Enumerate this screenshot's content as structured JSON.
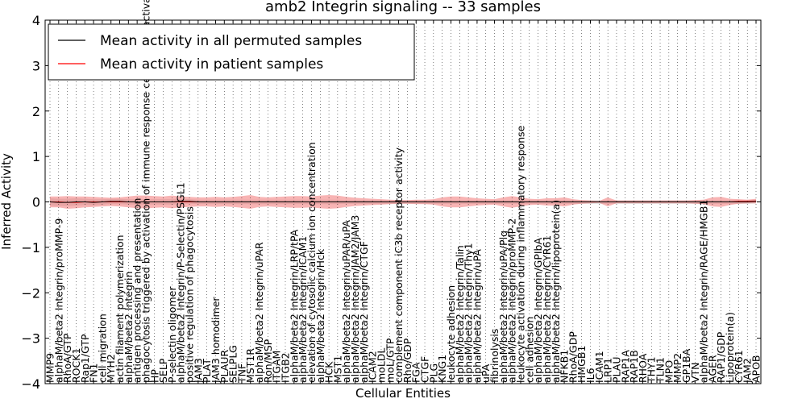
{
  "chart_data": {
    "type": "line",
    "title": "amb2 Integrin signaling -- 33 samples",
    "xlabel": "Cellular Entities",
    "ylabel": "Inferred Activity",
    "ylim": [
      -4,
      4
    ],
    "yticks": [
      -4,
      -3,
      -2,
      -1,
      0,
      1,
      2,
      3,
      4
    ],
    "ytick_labels": [
      "−4",
      "−3",
      "−2",
      "−1",
      "0",
      "1",
      "2",
      "3",
      "4"
    ],
    "legend": {
      "placement": "top-left",
      "entries": [
        {
          "label": "Mean activity in all permuted samples",
          "color": "#000000"
        },
        {
          "label": "Mean activity in patient samples",
          "color": "#ff0000"
        }
      ]
    },
    "categories": [
      "MMP9",
      "alphaM/beta2 Integrin/proMMP-9",
      "RhoA/GTP",
      "ROCK1",
      "Rap1/GTP",
      "FN1",
      "cell migration",
      "MYH2",
      "actin filament polymerization",
      "alphaM/beta2 Integrin",
      "antigen processing and presentation",
      "phagocytosis triggered by activation of immune response cell surface activating receptor",
      "HP",
      "SELP",
      "P-selectin oligomer",
      "alphaM/beta2 Integrin/P-Selectin/PSGL1",
      "positive regulation of phagocytosis",
      "JAM3",
      "PLAT",
      "JAM3 homodimer",
      "PLAUR",
      "SELPLG",
      "TNF",
      "MST1R",
      "alphaM/beta2 Integrin/uPAR",
      "Ron/MSP",
      "ITGAM",
      "ITGB2",
      "alphaM/beta2 Integrin/LRP/tPA",
      "alphaM/beta2 Integrin/ICAM1",
      "elevation of cytosolic calcium ion concentration",
      "alphaM/beta2 Integrin/Hck",
      "HCK",
      "MST1",
      "alphaM/beta2 Integrin/uPAR/uPA",
      "alphaM/beta2 Integrin/JAM2/JAM3",
      "alphaM/beta2 Integrin/CTGF",
      "ICAM2",
      "moLDL",
      "moL/GTP",
      "complement component iC3b receptor activity",
      "Rho/GDP",
      "FGA",
      "CTGF",
      "PLG",
      "KNG1",
      "leukocyte adhesion",
      "alphaM/beta2 Integrin/Talin",
      "alphaM/beta2 Integrin/Thy1",
      "alphaM/beta2 Integrin/uPA",
      "uPA",
      "fibrinolysis",
      "alphaM/beta2 Integrin/uPA/Plg",
      "alphaM/beta2 Integrin/proMMP-2",
      "leukocyte activation during inflammatory response",
      "cell adhesion",
      "alphaM/beta2 Integrin/GPIbA",
      "alphaM/beta2 Integrin/CYR61",
      "alphaM/beta2 Integrin/lipoprotein(a)",
      "NFKB1",
      "RhoA/GDP",
      "HMGB1",
      "IL6",
      "ICAM1",
      "LRP1",
      "PLAU",
      "RAP1A",
      "RAP1B",
      "RHOA",
      "THY1",
      "TLN1",
      "MPO",
      "MMP2",
      "GP1BA",
      "VTN",
      "alphaM/beta2 Integrin/RAGE/HMGB1",
      "AGER",
      "RAP1/GDP",
      "Lipoprotein(a)",
      "CYR61",
      "JAM2",
      "APOB"
    ],
    "series": [
      {
        "name": "Mean activity in all permuted samples",
        "color": "#000000",
        "values": [
          0,
          -0.01,
          -0.01,
          0,
          0,
          -0.01,
          0,
          0.01,
          0.01,
          0,
          0,
          0,
          0,
          0,
          0,
          0.01,
          0.01,
          0,
          0,
          0,
          0,
          0,
          0,
          0,
          0,
          0,
          0,
          0,
          0,
          0,
          0,
          0,
          0,
          0,
          0,
          0,
          0,
          0,
          0,
          0,
          0,
          0,
          0,
          0,
          0,
          0,
          0,
          0,
          0,
          0,
          0,
          0,
          0,
          0,
          0,
          0,
          0,
          0,
          0,
          0,
          0,
          0,
          0,
          0,
          0,
          0,
          0,
          0,
          0,
          0,
          0,
          0,
          0,
          0,
          0,
          0,
          0,
          0,
          0,
          0,
          0,
          0.01
        ],
        "band": [
          0.08,
          0.08,
          0.08,
          0.08,
          0.07,
          0.07,
          0.06,
          0.06,
          0.06,
          0.06,
          0.06,
          0.06,
          0.06,
          0.06,
          0.06,
          0.06,
          0.05,
          0.05,
          0.05,
          0.05,
          0.05,
          0.05,
          0.05,
          0.05,
          0.05,
          0.05,
          0.05,
          0.05,
          0.05,
          0.05,
          0.05,
          0.05,
          0.05,
          0.05,
          0.04,
          0.04,
          0.04,
          0.04,
          0.04,
          0.04,
          0.04,
          0.04,
          0.04,
          0.04,
          0.04,
          0.04,
          0.04,
          0.04,
          0.04,
          0.04,
          0.04,
          0.04,
          0.04,
          0.04,
          0.04,
          0.04,
          0.04,
          0.04,
          0.04,
          0.04,
          0.04,
          0.04,
          0.04,
          0.04,
          0.04,
          0.04,
          0.04,
          0.04,
          0.04,
          0.04,
          0.04,
          0.04,
          0.04,
          0.04,
          0.04,
          0.04,
          0.04,
          0.04,
          0.04,
          0.04,
          0.04,
          0.04
        ]
      },
      {
        "name": "Mean activity in patient samples",
        "color": "#ff0000",
        "values": [
          0,
          0,
          -0.01,
          -0.01,
          0,
          0,
          0,
          0,
          0,
          0,
          0,
          0,
          0,
          0,
          0,
          0,
          0,
          0,
          0,
          0,
          0,
          0,
          0,
          0,
          0,
          0,
          0,
          0,
          0,
          0,
          0,
          0,
          0,
          0,
          0,
          0,
          0,
          0,
          0,
          0,
          0,
          0,
          0,
          0,
          0,
          0,
          0,
          0,
          0,
          0,
          0,
          0,
          0,
          0,
          0,
          0,
          0,
          0,
          0,
          0,
          0,
          0,
          0,
          0,
          0,
          0,
          0,
          0,
          0,
          0,
          0,
          0,
          0,
          0,
          0,
          0,
          0,
          0,
          0,
          0.01,
          0.01,
          0.02
        ],
        "band": [
          0.12,
          0.12,
          0.14,
          0.13,
          0.12,
          0.11,
          0.1,
          0.09,
          0.1,
          0.12,
          0.14,
          0.14,
          0.13,
          0.12,
          0.14,
          0.12,
          0.11,
          0.1,
          0.1,
          0.11,
          0.1,
          0.11,
          0.13,
          0.15,
          0.11,
          0.1,
          0.11,
          0.12,
          0.13,
          0.13,
          0.12,
          0.14,
          0.15,
          0.14,
          0.11,
          0.09,
          0.08,
          0.07,
          0.06,
          0.05,
          0.04,
          0.04,
          0.05,
          0.05,
          0.06,
          0.1,
          0.12,
          0.12,
          0.1,
          0.08,
          0.07,
          0.06,
          0.1,
          0.13,
          0.1,
          0.07,
          0.06,
          0.08,
          0.08,
          0.1,
          0.06,
          0.04,
          0.03,
          0.02,
          0.1,
          0.03,
          0.03,
          0.03,
          0.03,
          0.03,
          0.03,
          0.03,
          0.03,
          0.03,
          0.04,
          0.05,
          0.1,
          0.11,
          0.07,
          0.05,
          0.04,
          0.05
        ]
      }
    ]
  }
}
